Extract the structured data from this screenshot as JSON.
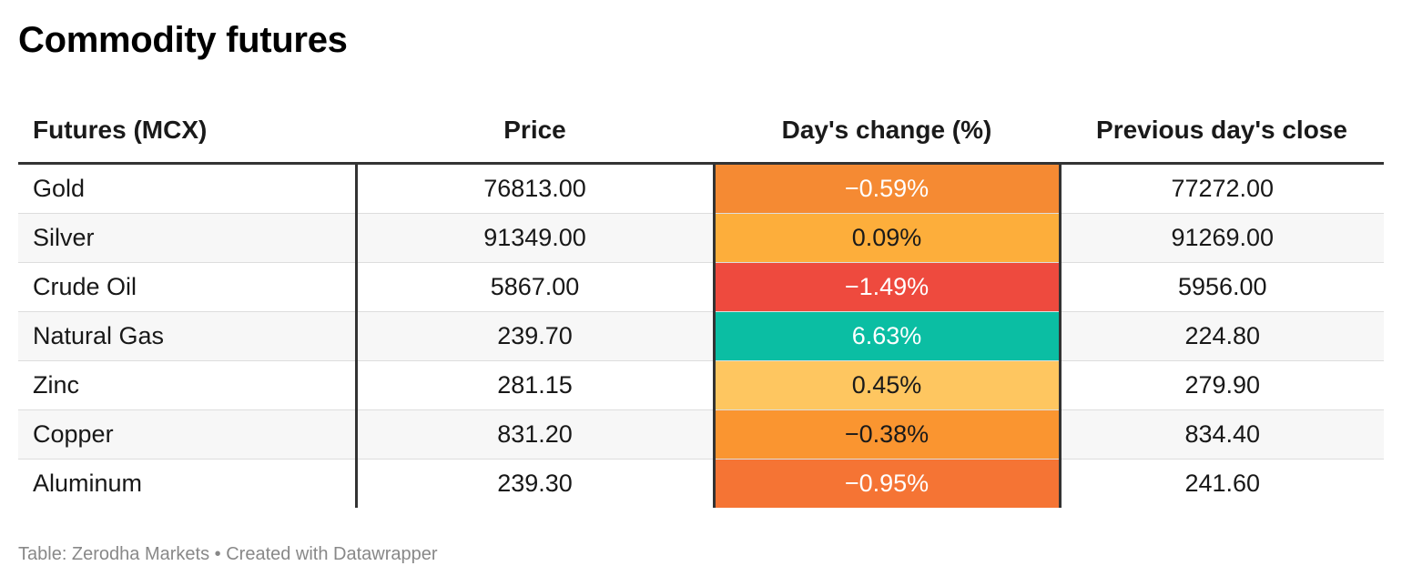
{
  "title": "Commodity futures",
  "source": "Table: Zerodha Markets • Created with Datawrapper",
  "chart_data": {
    "type": "table",
    "title": "Commodity futures",
    "columns": [
      "Futures (MCX)",
      "Price",
      "Day's change (%)",
      "Previous day's close"
    ],
    "rows": [
      {
        "name": "Gold",
        "price": "76813.00",
        "change": "−0.59%",
        "change_value": -0.59,
        "change_color": "#f58a33",
        "change_text_color": "#ffffff",
        "prev_close": "77272.00"
      },
      {
        "name": "Silver",
        "price": "91349.00",
        "change": "0.09%",
        "change_value": 0.09,
        "change_color": "#fdae3b",
        "change_text_color": "#1a1a1a",
        "prev_close": "91269.00"
      },
      {
        "name": "Crude Oil",
        "price": "5867.00",
        "change": "−1.49%",
        "change_value": -1.49,
        "change_color": "#ee4a3e",
        "change_text_color": "#ffffff",
        "prev_close": "5956.00"
      },
      {
        "name": "Natural Gas",
        "price": "239.70",
        "change": "6.63%",
        "change_value": 6.63,
        "change_color": "#0bbea3",
        "change_text_color": "#ffffff",
        "prev_close": "224.80"
      },
      {
        "name": "Zinc",
        "price": "281.15",
        "change": "0.45%",
        "change_value": 0.45,
        "change_color": "#fec660",
        "change_text_color": "#1a1a1a",
        "prev_close": "279.90"
      },
      {
        "name": "Copper",
        "price": "831.20",
        "change": "−0.38%",
        "change_value": -0.38,
        "change_color": "#fa9530",
        "change_text_color": "#1a1a1a",
        "prev_close": "834.40"
      },
      {
        "name": "Aluminum",
        "price": "239.30",
        "change": "−0.95%",
        "change_value": -0.95,
        "change_color": "#f57434",
        "change_text_color": "#ffffff",
        "prev_close": "241.60"
      }
    ]
  }
}
